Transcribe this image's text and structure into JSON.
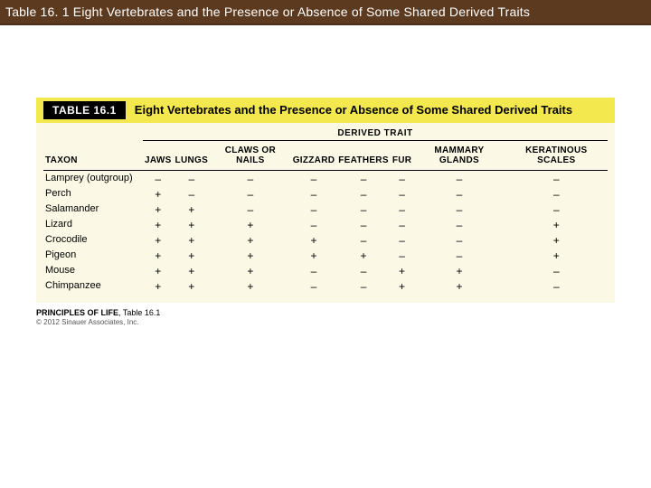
{
  "slide": {
    "title": "Table 16. 1  Eight Vertebrates and the Presence or Absence of Some Shared Derived Traits"
  },
  "table": {
    "tag": "TABLE 16.1",
    "title": "Eight Vertebrates and the Presence or Absence of Some Shared Derived Traits",
    "super_header": "DERIVED TRAIT",
    "row_header": "TAXON",
    "columns": [
      "JAWS",
      "LUNGS",
      "CLAWS OR NAILS",
      "GIZZARD",
      "FEATHERS",
      "FUR",
      "MAMMARY GLANDS",
      "KERATINOUS SCALES"
    ],
    "rows": [
      {
        "taxon": "Lamprey (outgroup)",
        "v": [
          "–",
          "–",
          "–",
          "–",
          "–",
          "–",
          "–",
          "–"
        ]
      },
      {
        "taxon": "Perch",
        "v": [
          "+",
          "–",
          "–",
          "–",
          "–",
          "–",
          "–",
          "–"
        ]
      },
      {
        "taxon": "Salamander",
        "v": [
          "+",
          "+",
          "–",
          "–",
          "–",
          "–",
          "–",
          "–"
        ]
      },
      {
        "taxon": "Lizard",
        "v": [
          "+",
          "+",
          "+",
          "–",
          "–",
          "–",
          "–",
          "+"
        ]
      },
      {
        "taxon": "Crocodile",
        "v": [
          "+",
          "+",
          "+",
          "+",
          "–",
          "–",
          "–",
          "+"
        ]
      },
      {
        "taxon": "Pigeon",
        "v": [
          "+",
          "+",
          "+",
          "+",
          "+",
          "–",
          "–",
          "+"
        ]
      },
      {
        "taxon": "Mouse",
        "v": [
          "+",
          "+",
          "+",
          "–",
          "–",
          "+",
          "+",
          "–"
        ]
      },
      {
        "taxon": "Chimpanzee",
        "v": [
          "+",
          "+",
          "+",
          "–",
          "–",
          "+",
          "+",
          "–"
        ]
      }
    ]
  },
  "caption": {
    "source_bold": "PRINCIPLES OF LIFE",
    "source_rest": ", Table 16.1",
    "copyright": "© 2012 Sinauer Associates, Inc."
  },
  "style": {
    "title_bar_bg": "#5c3a1f",
    "header_bar_bg": "#f3e94f",
    "table_bg": "#fbf9e6"
  }
}
